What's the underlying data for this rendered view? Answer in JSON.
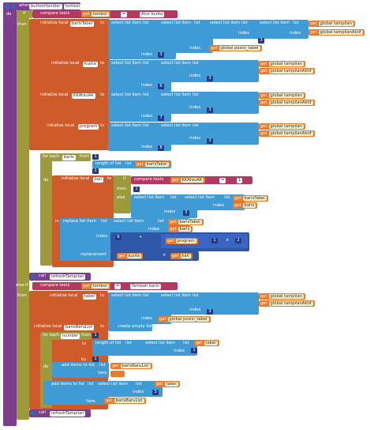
{
  "handler": {
    "when": "when",
    "component": "buttonHandler",
    "event": "tombol",
    "do": "do"
  },
  "if1": {
    "if": "if",
    "then": "then",
    "compare": "compare texts",
    "get": "get",
    "var": "tombol",
    "op": "=",
    "text": "Atur kuota"
  },
  "inits": [
    {
      "label": "initialize local",
      "name": "barisTabel",
      "to": "to"
    },
    {
      "label": "initialize local",
      "name": "kuota",
      "to": "to"
    },
    {
      "label": "initialize local",
      "name": "KKAtauAK",
      "to": "to"
    },
    {
      "label": "initialize local",
      "name": "program",
      "to": "to"
    }
  ],
  "sel": {
    "select": "select list item",
    "list": "list",
    "index": "index",
    "get": "get",
    "global_tampilan": "global tampilan",
    "global_tampilanAktif": "global tampilanAktif",
    "global_posisi": "global posisi_tabel"
  },
  "nums": {
    "n1": "1",
    "n2": "2",
    "n3": "3",
    "n5": "5",
    "n6": "6",
    "n7": "7",
    "n8": "8"
  },
  "in1": "in",
  "foreach": {
    "label": "for each",
    "var": "baris",
    "from": "from",
    "to": "to",
    "by": "by",
    "length": "length of list",
    "list": "list",
    "get": "get",
    "listvar": "barisTabel",
    "do": "do"
  },
  "inner": {
    "init": "initialize local",
    "name": "kali",
    "to": "to",
    "if": "if",
    "compare": "compare texts",
    "get": "get",
    "var": "KKAtauAK",
    "op": "=",
    "text": "1",
    "then": "then",
    "else": "else",
    "barisTabel": "barisTabel",
    "baris": "baris",
    "in": "in"
  },
  "replace": {
    "label": "replace list item",
    "list": "list",
    "index": "index",
    "replacement": "replacement",
    "get": "get",
    "barisTabel": "barisTabel",
    "baris": "baris",
    "program": "program",
    "kuota": "kuota",
    "kali": "kali",
    "plus": "+",
    "times": "×"
  },
  "call1": {
    "call": "call",
    "name": "refreshTampilan"
  },
  "elseif": {
    "label": "else if",
    "compare": "compare texts",
    "get": "get",
    "var": "tombol",
    "op": "=",
    "text": "Tambah baris",
    "then": "then"
  },
  "init2": {
    "label": "initialize local",
    "name": "tabel",
    "to": "to"
  },
  "init3": {
    "label": "initialize local",
    "name": "barisBaruList",
    "to": "to",
    "create": "create empty list"
  },
  "foreach2": {
    "label": "for each",
    "var": "number",
    "from": "from",
    "to": "to",
    "by": "by",
    "length": "length of list",
    "list": "list",
    "get": "get",
    "listvar": "tabel",
    "index": "index",
    "do": "do"
  },
  "add1": {
    "label": "add items to list",
    "list": "list",
    "item": "item",
    "get": "get",
    "listvar": "barisBaruList"
  },
  "add2": {
    "label": "add items to list",
    "list": "list",
    "item": "item",
    "get": "get",
    "listvar": "tabel",
    "itemvar": "barisBaruList"
  },
  "call2": {
    "call": "call",
    "name": "refreshTampilan"
  },
  "colors": {
    "event": "#7b3f8c",
    "control": "#9c9a3a",
    "variable": "#cf5b2a",
    "list": "#3f9bd6",
    "text": "#b5385f",
    "math": "#2f57a8"
  }
}
